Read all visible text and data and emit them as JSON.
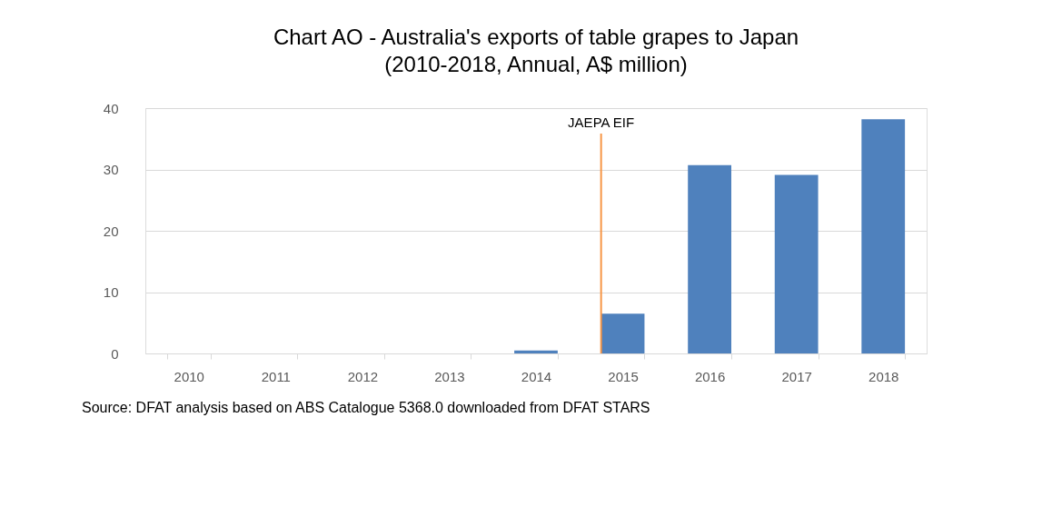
{
  "chart_data": {
    "type": "bar",
    "title": "Chart AO - Australia's exports of table grapes to Japan",
    "subtitle": "(2010-2018, Annual, A$ million)",
    "categories": [
      "2010",
      "2011",
      "2012",
      "2013",
      "2014",
      "2015",
      "2016",
      "2017",
      "2018"
    ],
    "values": [
      0,
      0,
      0,
      0,
      0.5,
      6.5,
      30.7,
      29.1,
      38.2
    ],
    "color": "#4f81bd",
    "ylim": [
      0,
      40
    ],
    "yticks": [
      0,
      10,
      20,
      30,
      40
    ],
    "grid": "y",
    "ref_lines": [
      {
        "axis": "x",
        "value": "2015",
        "label": "JAEPA EIF",
        "color": "#f79646"
      }
    ],
    "annotations": [
      "Source: DFAT analysis based on ABS Catalogue 5368.0 downloaded from DFAT STARS"
    ]
  }
}
